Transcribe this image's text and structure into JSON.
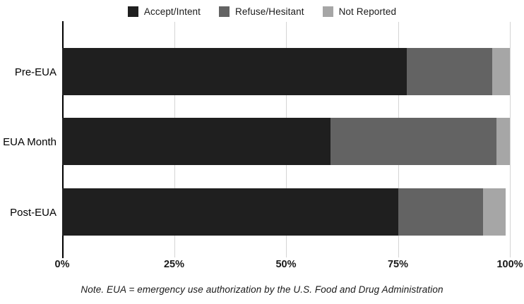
{
  "chart_data": {
    "type": "bar",
    "orientation": "horizontal",
    "stacked": true,
    "title": "",
    "xlabel": "",
    "ylabel": "",
    "categories": [
      "Pre-EUA",
      "EUA Month",
      "Post-EUA"
    ],
    "series": [
      {
        "name": "Accept/Intent",
        "color": "#1f1f1f",
        "values": [
          77,
          60,
          75
        ]
      },
      {
        "name": "Refuse/Hesitant",
        "color": "#636363",
        "values": [
          19,
          37,
          19
        ]
      },
      {
        "name": "Not Reported",
        "color": "#a6a6a6",
        "values": [
          4,
          3,
          5
        ]
      }
    ],
    "xlim": [
      0,
      100
    ],
    "x_tick_labels": [
      "0%",
      "25%",
      "50%",
      "75%",
      "100%"
    ],
    "x_tick_values": [
      0,
      25,
      50,
      75,
      100
    ],
    "grid": true,
    "legend_position": "top"
  },
  "note": "Note. EUA = emergency use authorization by the U.S. Food and Drug Administration",
  "colors": {
    "gridline": "#d4d4d4",
    "zero_axis": "#000000",
    "background": "#ffffff",
    "text": "#1a1a1a"
  }
}
